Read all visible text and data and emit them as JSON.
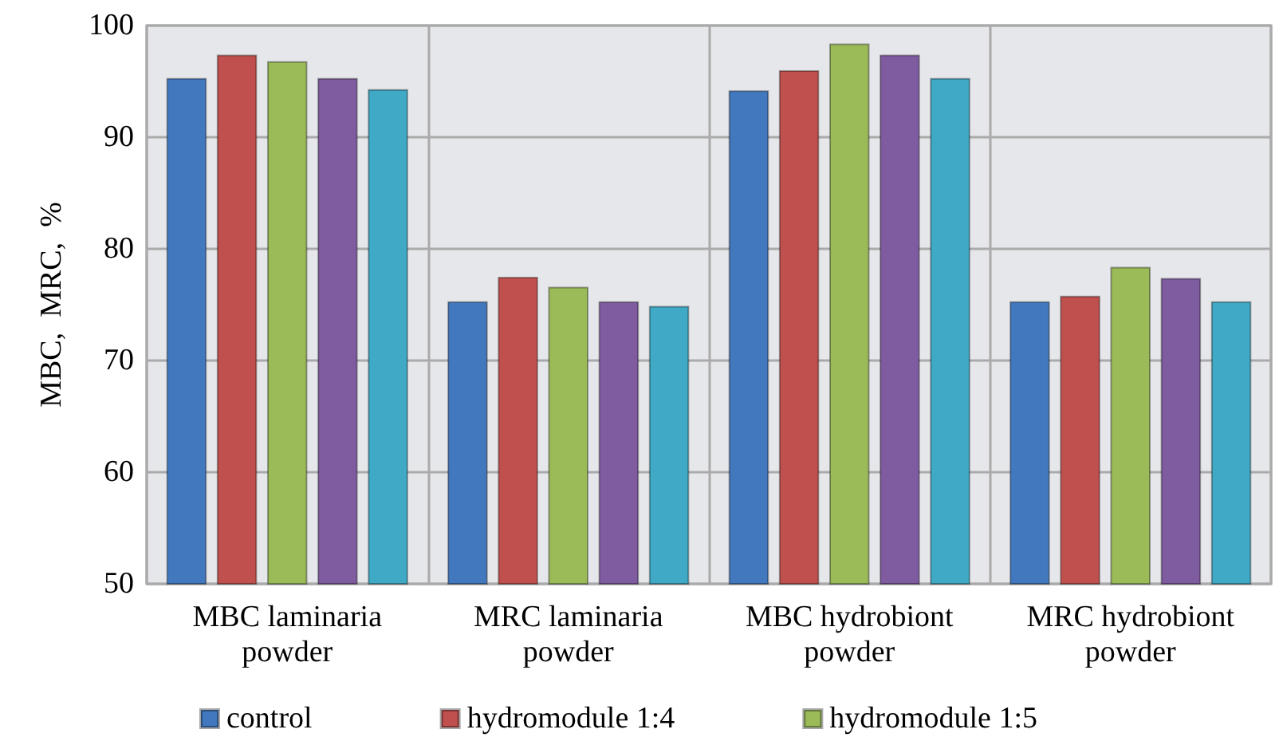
{
  "chart_data": {
    "type": "bar",
    "ylabel": "MBC,  MRC,  %",
    "categories": [
      "MBC laminaria\npowder",
      "MRC laminaria\npowder",
      "MBC hydrobiont\npowder",
      "MRC hydrobiont\npowder"
    ],
    "series": [
      {
        "name": "control",
        "color": "#4279be",
        "values": [
          95.3,
          75.3,
          94.2,
          75.3
        ]
      },
      {
        "name": "hydromodule 1:4",
        "color": "#c0504d",
        "values": [
          97.4,
          77.5,
          96.0,
          75.8
        ]
      },
      {
        "name": "hydromodule 1:5",
        "color": "#9bbb59",
        "values": [
          96.8,
          76.6,
          98.4,
          78.4
        ]
      },
      {
        "color": "#7f5ca0",
        "values": [
          95.3,
          75.3,
          97.4,
          77.4
        ]
      },
      {
        "color": "#3fa9c6",
        "values": [
          94.3,
          74.9,
          95.3,
          75.3
        ]
      }
    ],
    "ylim": [
      50,
      100
    ],
    "yticks": [
      50,
      60,
      70,
      80,
      90,
      100
    ],
    "grid": true,
    "legend": "bottom"
  }
}
